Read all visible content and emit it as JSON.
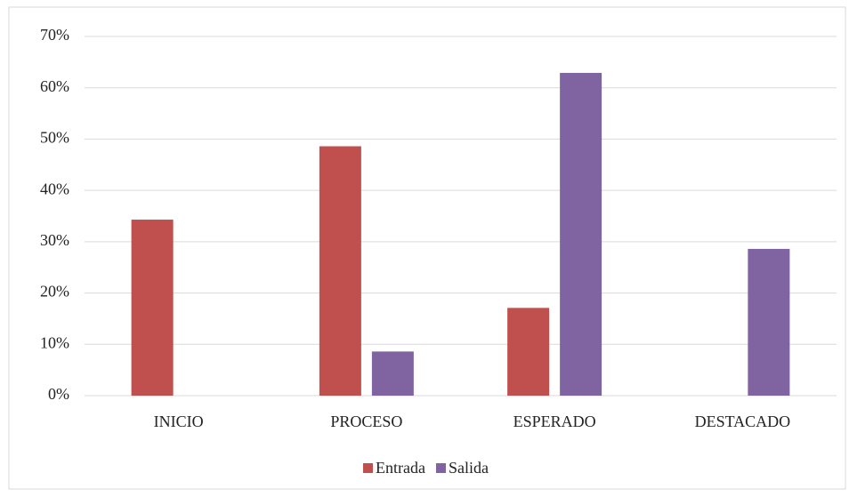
{
  "chart_data": {
    "type": "bar",
    "categories": [
      "INICIO",
      "PROCESO",
      "ESPERADO",
      "DESTACADO"
    ],
    "series": [
      {
        "name": "Entrada",
        "color": "#c0504d",
        "values": [
          34.3,
          48.6,
          17.1,
          0
        ]
      },
      {
        "name": "Salida",
        "color": "#8064a2",
        "values": [
          0,
          8.6,
          62.9,
          28.6
        ]
      }
    ],
    "ylim": [
      0,
      70
    ],
    "yticks": [
      {
        "value": 0,
        "label": "0%"
      },
      {
        "value": 10,
        "label": "10%"
      },
      {
        "value": 20,
        "label": "20%"
      },
      {
        "value": 30,
        "label": "30%"
      },
      {
        "value": 40,
        "label": "40%"
      },
      {
        "value": 50,
        "label": "50%"
      },
      {
        "value": 60,
        "label": "60%"
      },
      {
        "value": 70,
        "label": "70%"
      }
    ],
    "grid": true,
    "legend": "bottom"
  }
}
